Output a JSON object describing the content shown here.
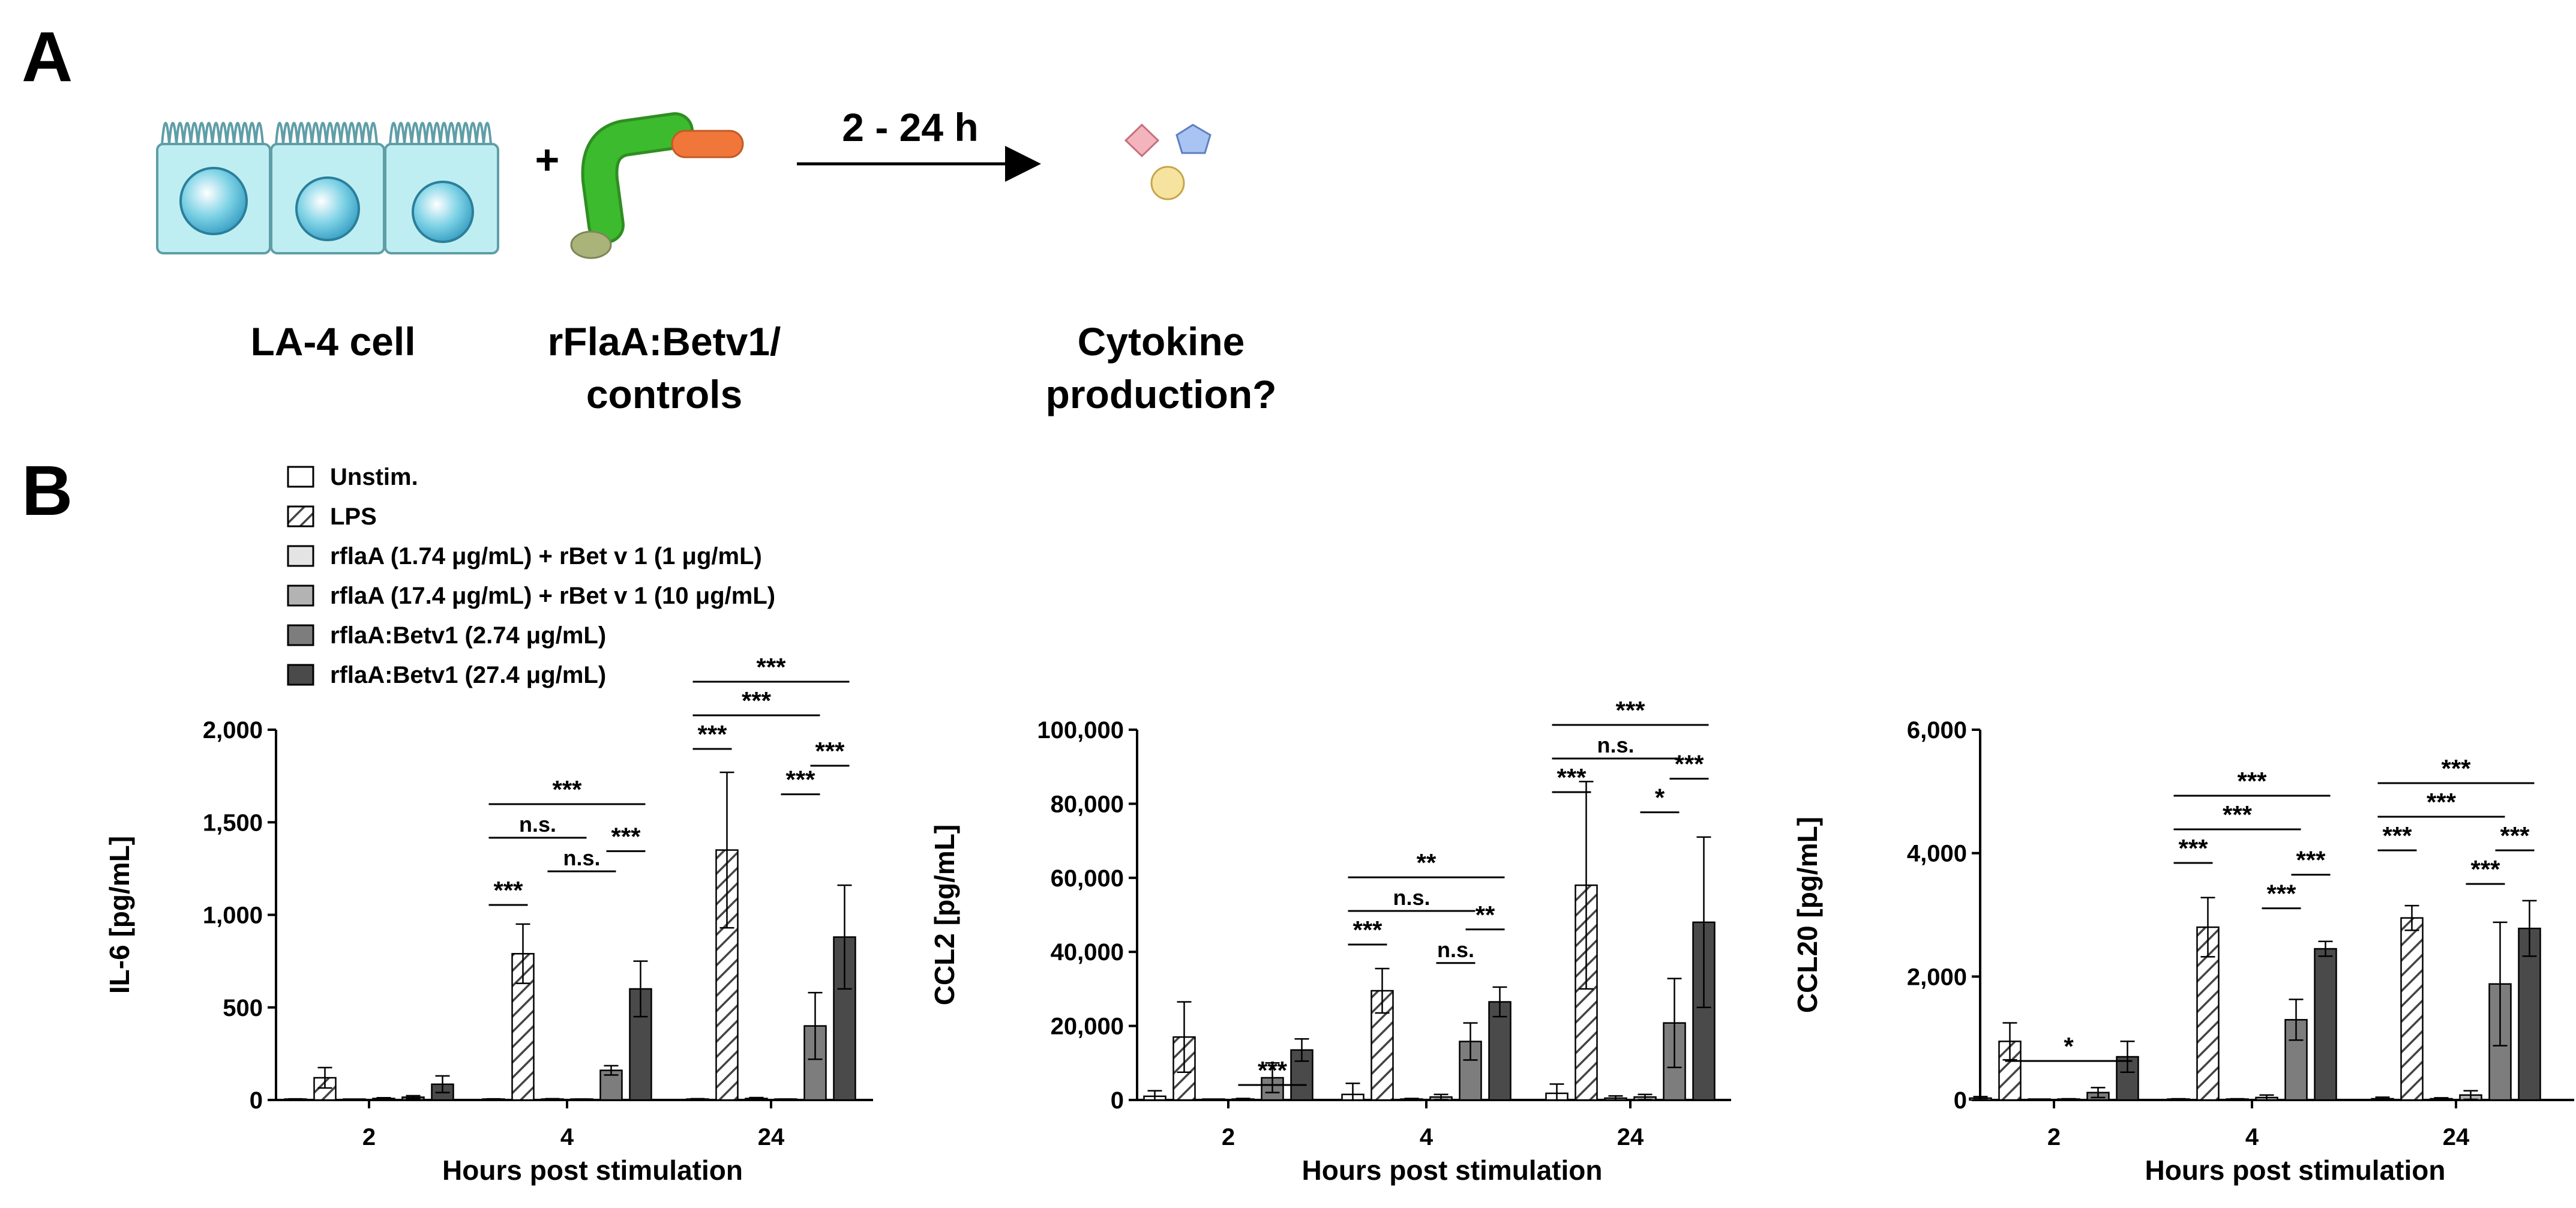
{
  "panel_a": {
    "label": "A",
    "cell_label": "LA-4 cell",
    "protein_label_line1": "rFlaA:Betv1/",
    "protein_label_line2": "controls",
    "plus": "+",
    "arrow_label": "2 - 24 h",
    "result_label_line1": "Cytokine",
    "result_label_line2": "production?",
    "colors": {
      "cell_fill": "#bfeef2",
      "flagellin": "#3dbb2e",
      "betv1": "#f0763a",
      "anchor": "#a9b37a",
      "diamond": "#f4b4be",
      "pentagon": "#a9c4f2",
      "circle": "#f7e3a0"
    }
  },
  "panel_b": {
    "label": "B",
    "legend": [
      {
        "label": "Unstim.",
        "pattern": "white"
      },
      {
        "label": "LPS",
        "pattern": "hatch"
      },
      {
        "label": "rflaA (1.74 μg/mL) + rBet v 1 (1 μg/mL)",
        "pattern": "#e4e4e4"
      },
      {
        "label": "rflaA (17.4 μg/mL) + rBet v 1 (10 μg/mL)",
        "pattern": "#b3b3b3"
      },
      {
        "label": "rflaA:Betv1 (2.74 μg/mL)",
        "pattern": "#7d7d7d"
      },
      {
        "label": "rflaA:Betv1 (27.4 μg/mL)",
        "pattern": "#4a4a4a"
      }
    ]
  },
  "chart_data": [
    {
      "type": "bar",
      "title": "",
      "xlabel": "Hours post stimulation",
      "ylabel": "IL-6 [pg/mL]",
      "categories": [
        "2",
        "4",
        "24"
      ],
      "ylim": [
        0,
        2000
      ],
      "yticks": [
        0,
        500,
        1000,
        1500,
        2000
      ],
      "ytick_labels": [
        "0",
        "500",
        "1,000",
        "1,500",
        "2,000"
      ],
      "series": [
        {
          "name": "Unstim.",
          "values": [
            3,
            3,
            4
          ],
          "errors": [
            3,
            3,
            3
          ]
        },
        {
          "name": "LPS",
          "values": [
            120,
            790,
            1350
          ],
          "errors": [
            55,
            160,
            420
          ]
        },
        {
          "name": "rflaA (1.74 μg/mL) + rBet v 1 (1 μg/mL)",
          "values": [
            2,
            4,
            8
          ],
          "errors": [
            2,
            3,
            5
          ]
        },
        {
          "name": "rflaA (17.4 μg/mL) + rBet v 1 (10 μg/mL)",
          "values": [
            8,
            3,
            3
          ],
          "errors": [
            4,
            2,
            2
          ]
        },
        {
          "name": "rflaA:Betv1 (2.74 μg/mL)",
          "values": [
            15,
            160,
            400
          ],
          "errors": [
            8,
            25,
            180
          ]
        },
        {
          "name": "rflaA:Betv1 (27.4 μg/mL)",
          "values": [
            85,
            600,
            880
          ],
          "errors": [
            45,
            150,
            280
          ]
        }
      ],
      "significance": [
        {
          "group": 1,
          "from": 0,
          "to": 1,
          "label": "***",
          "level": 1
        },
        {
          "group": 1,
          "from": 0,
          "to": 3,
          "label": "n.s.",
          "level": 3
        },
        {
          "group": 1,
          "from": 0,
          "to": 5,
          "label": "***",
          "level": 4
        },
        {
          "group": 1,
          "from": 2,
          "to": 4,
          "label": "n.s.",
          "level": 2
        },
        {
          "group": 1,
          "from": 4,
          "to": 5,
          "label": "***",
          "level": 2.6
        },
        {
          "group": 2,
          "from": 0,
          "to": 1,
          "label": "***",
          "level": 1
        },
        {
          "group": 2,
          "from": 0,
          "to": 4,
          "label": "***",
          "level": 2
        },
        {
          "group": 2,
          "from": 0,
          "to": 5,
          "label": "***",
          "level": 3
        },
        {
          "group": 2,
          "from": 3,
          "to": 4,
          "label": "***",
          "level": -0.35
        },
        {
          "group": 2,
          "from": 4,
          "to": 5,
          "label": "***",
          "level": 0.5
        }
      ]
    },
    {
      "type": "bar",
      "title": "",
      "xlabel": "Hours post stimulation",
      "ylabel": "CCL2 [pg/mL]",
      "categories": [
        "2",
        "4",
        "24"
      ],
      "ylim": [
        0,
        100000
      ],
      "yticks": [
        0,
        20000,
        40000,
        60000,
        80000,
        100000
      ],
      "ytick_labels": [
        "0",
        "20,000",
        "40,000",
        "60,000",
        "80,000",
        "100,000"
      ],
      "series": [
        {
          "name": "Unstim.",
          "values": [
            1000,
            1500,
            1800
          ],
          "errors": [
            1500,
            3000,
            2500
          ]
        },
        {
          "name": "LPS",
          "values": [
            17000,
            29500,
            58000
          ],
          "errors": [
            9500,
            6000,
            28000
          ]
        },
        {
          "name": "rflaA (1.74 μg/mL) + rBet v 1 (1 μg/mL)",
          "values": [
            100,
            200,
            500
          ],
          "errors": [
            100,
            200,
            600
          ]
        },
        {
          "name": "rflaA (17.4 μg/mL) + rBet v 1 (10 μg/mL)",
          "values": [
            200,
            800,
            800
          ],
          "errors": [
            200,
            700,
            700
          ]
        },
        {
          "name": "rflaA:Betv1 (2.74 μg/mL)",
          "values": [
            6000,
            15800,
            20800
          ],
          "errors": [
            4000,
            5000,
            12000
          ]
        },
        {
          "name": "rflaA:Betv1 (27.4 μg/mL)",
          "values": [
            13500,
            26500,
            48000
          ],
          "errors": [
            3000,
            4000,
            23000
          ]
        }
      ],
      "significance": [
        {
          "group": 0,
          "from": 3,
          "to": 5,
          "label": "***",
          "level": 0
        },
        {
          "group": 1,
          "from": 0,
          "to": 1,
          "label": "***",
          "level": 1
        },
        {
          "group": 1,
          "from": 0,
          "to": 4,
          "label": "n.s.",
          "level": 2
        },
        {
          "group": 1,
          "from": 0,
          "to": 5,
          "label": "**",
          "level": 3
        },
        {
          "group": 1,
          "from": 3,
          "to": 4,
          "label": "n.s.",
          "level": 0.45
        },
        {
          "group": 1,
          "from": 4,
          "to": 5,
          "label": "**",
          "level": 1.45
        },
        {
          "group": 2,
          "from": 0,
          "to": 1,
          "label": "***",
          "level": 1
        },
        {
          "group": 2,
          "from": 0,
          "to": 4,
          "label": "n.s.",
          "level": 2
        },
        {
          "group": 2,
          "from": 0,
          "to": 5,
          "label": "***",
          "level": 3
        },
        {
          "group": 2,
          "from": 3,
          "to": 4,
          "label": "*",
          "level": 0.4
        },
        {
          "group": 2,
          "from": 4,
          "to": 5,
          "label": "***",
          "level": 1.4
        }
      ]
    },
    {
      "type": "bar",
      "title": "",
      "xlabel": "Hours post stimulation",
      "ylabel": "CCL20 [pg/mL]",
      "categories": [
        "2",
        "4",
        "24"
      ],
      "ylim": [
        0,
        6000
      ],
      "yticks": [
        0,
        2000,
        4000,
        6000
      ],
      "ytick_labels": [
        "0",
        "2,000",
        "4,000",
        "6,000"
      ],
      "series": [
        {
          "name": "Unstim.",
          "values": [
            30,
            10,
            20
          ],
          "errors": [
            25,
            10,
            25
          ]
        },
        {
          "name": "LPS",
          "values": [
            950,
            2800,
            2950
          ],
          "errors": [
            300,
            480,
            200
          ]
        },
        {
          "name": "rflaA (1.74 μg/mL) + rBet v 1 (1 μg/mL)",
          "values": [
            5,
            10,
            20
          ],
          "errors": [
            5,
            10,
            15
          ]
        },
        {
          "name": "rflaA (17.4 μg/mL) + rBet v 1 (10 μg/mL)",
          "values": [
            10,
            40,
            80
          ],
          "errors": [
            10,
            40,
            70
          ]
        },
        {
          "name": "rflaA:Betv1 (2.74 μg/mL)",
          "values": [
            120,
            1300,
            1880
          ],
          "errors": [
            80,
            330,
            1000
          ]
        },
        {
          "name": "rflaA:Betv1 (27.4 μg/mL)",
          "values": [
            700,
            2450,
            2780
          ],
          "errors": [
            250,
            120,
            450
          ]
        }
      ],
      "significance": [
        {
          "group": 0,
          "from": 1,
          "to": 5,
          "label": "*",
          "level": 0
        },
        {
          "group": 1,
          "from": 0,
          "to": 1,
          "label": "***",
          "level": 1
        },
        {
          "group": 1,
          "from": 0,
          "to": 4,
          "label": "***",
          "level": 2
        },
        {
          "group": 1,
          "from": 0,
          "to": 5,
          "label": "***",
          "level": 3
        },
        {
          "group": 1,
          "from": 3,
          "to": 4,
          "label": "***",
          "level": -0.35
        },
        {
          "group": 1,
          "from": 4,
          "to": 5,
          "label": "***",
          "level": 0.65
        },
        {
          "group": 2,
          "from": 0,
          "to": 1,
          "label": "***",
          "level": 1
        },
        {
          "group": 2,
          "from": 0,
          "to": 4,
          "label": "***",
          "level": 2
        },
        {
          "group": 2,
          "from": 0,
          "to": 5,
          "label": "***",
          "level": 3
        },
        {
          "group": 2,
          "from": 3,
          "to": 4,
          "label": "***",
          "level": 0
        },
        {
          "group": 2,
          "from": 4,
          "to": 5,
          "label": "***",
          "level": 1
        }
      ]
    }
  ]
}
